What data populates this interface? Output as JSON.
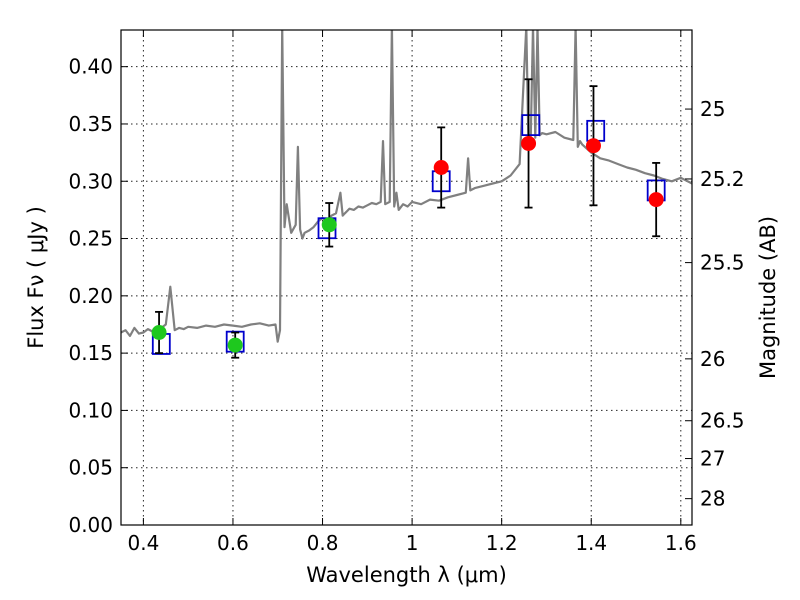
{
  "chart_data": {
    "type": "scatter",
    "xlabel": "Wavelength  λ (μm)",
    "ylabel": "Flux  Fν  ( μJy )",
    "ylabel_right": "Magnitude (AB)",
    "xlim": [
      0.35,
      1.625
    ],
    "ylim": [
      0.0,
      0.432
    ],
    "grid": true,
    "x_ticks": [
      0.4,
      0.6,
      0.8,
      1.0,
      1.2,
      1.4,
      1.6
    ],
    "x_tick_labels": [
      "0.4",
      "0.6",
      "0.8",
      "1",
      "1.2",
      "1.4",
      "1.6"
    ],
    "y_ticks": [
      0.0,
      0.05,
      0.1,
      0.15,
      0.2,
      0.25,
      0.3,
      0.35,
      0.4
    ],
    "y_tick_labels": [
      "0.00",
      "0.05",
      "0.10",
      "0.15",
      "0.20",
      "0.25",
      "0.30",
      "0.35",
      "0.40"
    ],
    "right_ticks": [
      {
        "flux": 0.363,
        "label": "25"
      },
      {
        "flux": 0.302,
        "label": "25.2"
      },
      {
        "flux": 0.229,
        "label": "25.5"
      },
      {
        "flux": 0.145,
        "label": "26"
      },
      {
        "flux": 0.091,
        "label": "26.5"
      },
      {
        "flux": 0.058,
        "label": "27"
      },
      {
        "flux": 0.023,
        "label": "28"
      }
    ],
    "series": [
      {
        "style": "line",
        "color": "#808080",
        "x": [
          0.35,
          0.36,
          0.37,
          0.38,
          0.39,
          0.4,
          0.41,
          0.42,
          0.43,
          0.44,
          0.45,
          0.46,
          0.47,
          0.48,
          0.49,
          0.5,
          0.52,
          0.54,
          0.56,
          0.58,
          0.6,
          0.62,
          0.64,
          0.66,
          0.68,
          0.695,
          0.7,
          0.705,
          0.71,
          0.715,
          0.72,
          0.73,
          0.74,
          0.745,
          0.75,
          0.755,
          0.76,
          0.77,
          0.78,
          0.79,
          0.8,
          0.81,
          0.82,
          0.83,
          0.84,
          0.845,
          0.85,
          0.855,
          0.86,
          0.87,
          0.88,
          0.89,
          0.9,
          0.91,
          0.92,
          0.93,
          0.935,
          0.94,
          0.95,
          0.955,
          0.96,
          0.965,
          0.97,
          0.98,
          0.99,
          1.0,
          1.02,
          1.04,
          1.06,
          1.08,
          1.1,
          1.12,
          1.125,
          1.13,
          1.14,
          1.16,
          1.18,
          1.2,
          1.22,
          1.24,
          1.255,
          1.26,
          1.265,
          1.27,
          1.275,
          1.28,
          1.285,
          1.29,
          1.3,
          1.32,
          1.34,
          1.36,
          1.365,
          1.37,
          1.375,
          1.38,
          1.4,
          1.42,
          1.44,
          1.46,
          1.48,
          1.5,
          1.52,
          1.54,
          1.56,
          1.58,
          1.6,
          1.625
        ],
        "y": [
          0.168,
          0.17,
          0.165,
          0.172,
          0.167,
          0.168,
          0.171,
          0.169,
          0.17,
          0.172,
          0.175,
          0.208,
          0.17,
          0.172,
          0.171,
          0.173,
          0.172,
          0.174,
          0.173,
          0.175,
          0.174,
          0.173,
          0.175,
          0.176,
          0.174,
          0.175,
          0.16,
          0.17,
          0.435,
          0.26,
          0.28,
          0.255,
          0.262,
          0.33,
          0.258,
          0.25,
          0.255,
          0.257,
          0.26,
          0.265,
          0.268,
          0.265,
          0.27,
          0.272,
          0.29,
          0.27,
          0.272,
          0.274,
          0.276,
          0.275,
          0.278,
          0.277,
          0.279,
          0.281,
          0.28,
          0.282,
          0.335,
          0.28,
          0.282,
          0.435,
          0.278,
          0.29,
          0.275,
          0.28,
          0.278,
          0.282,
          0.28,
          0.284,
          0.283,
          0.286,
          0.288,
          0.29,
          0.32,
          0.292,
          0.294,
          0.296,
          0.298,
          0.3,
          0.305,
          0.315,
          0.435,
          0.33,
          0.34,
          0.435,
          0.338,
          0.435,
          0.34,
          0.342,
          0.341,
          0.343,
          0.338,
          0.336,
          0.435,
          0.33,
          0.335,
          0.332,
          0.325,
          0.32,
          0.318,
          0.315,
          0.312,
          0.31,
          0.307,
          0.305,
          0.302,
          0.3,
          0.303,
          0.298
        ]
      },
      {
        "style": "markers",
        "marker": "square",
        "color": "#0000cc",
        "x": [
          0.44,
          0.605,
          0.81,
          1.065,
          1.265,
          1.41,
          1.545
        ],
        "y": [
          0.158,
          0.16,
          0.259,
          0.3,
          0.349,
          0.344,
          0.292
        ]
      },
      {
        "style": "markers",
        "marker": "circle",
        "color": "#1ec81e",
        "x": [
          0.435,
          0.605,
          0.815
        ],
        "y": [
          0.168,
          0.157,
          0.262
        ],
        "err": [
          0.018,
          0.011,
          0.019
        ]
      },
      {
        "style": "markers",
        "marker": "circle",
        "color": "#ff0000",
        "x": [
          1.065,
          1.26,
          1.405,
          1.545
        ],
        "y": [
          0.312,
          0.333,
          0.331,
          0.284
        ],
        "err": [
          0.035,
          0.056,
          0.052,
          0.032
        ]
      }
    ]
  }
}
